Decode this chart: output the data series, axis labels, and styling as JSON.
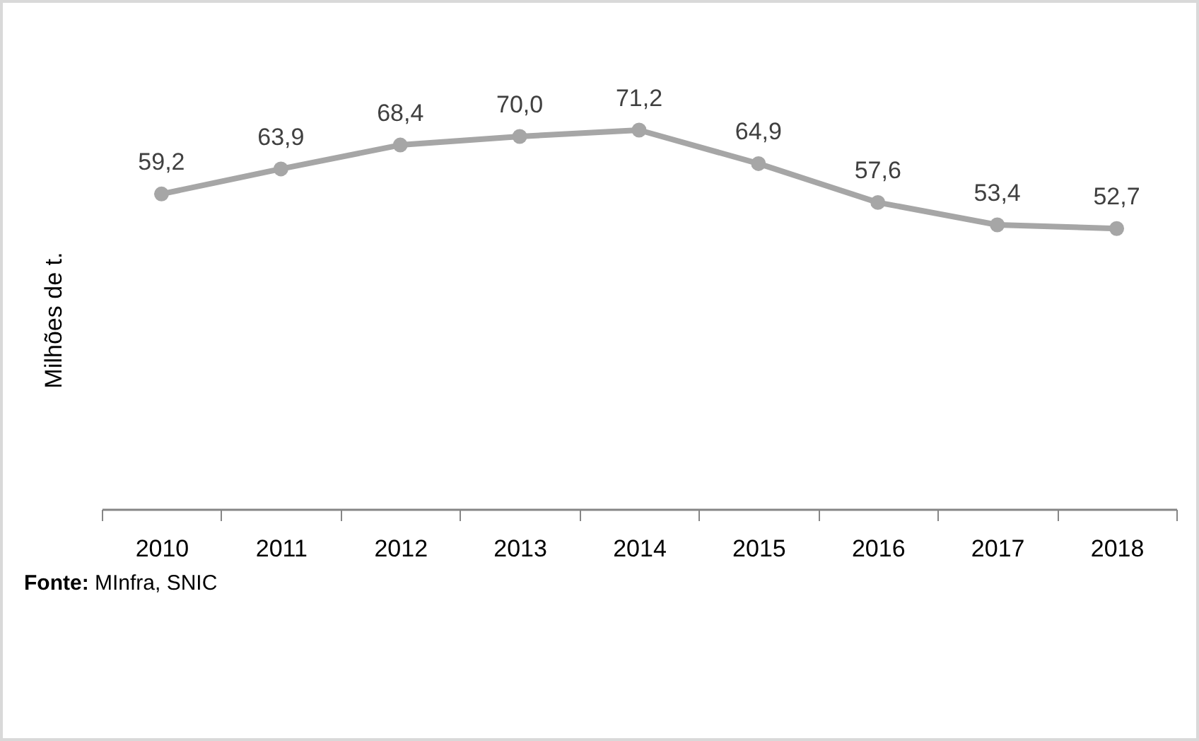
{
  "chart_data": {
    "type": "line",
    "ylabel": "Milhões de t.",
    "categories": [
      "2010",
      "2011",
      "2012",
      "2013",
      "2014",
      "2015",
      "2016",
      "2017",
      "2018"
    ],
    "series": [
      {
        "color": "#a6a6a6",
        "values": [
          59.2,
          63.9,
          68.4,
          70.0,
          71.2,
          64.9,
          57.6,
          53.4,
          52.7
        ],
        "value_labels": [
          "59,2",
          "63,9",
          "68,4",
          "70,0",
          "71,2",
          "64,9",
          "57,6",
          "53,4",
          "52,7"
        ]
      }
    ],
    "tick_labels": "x",
    "marker": "circle",
    "line_style": "solid",
    "grid": false,
    "legend": false,
    "annotations": [
      "Fonte: MInfra, SNIC"
    ]
  }
}
